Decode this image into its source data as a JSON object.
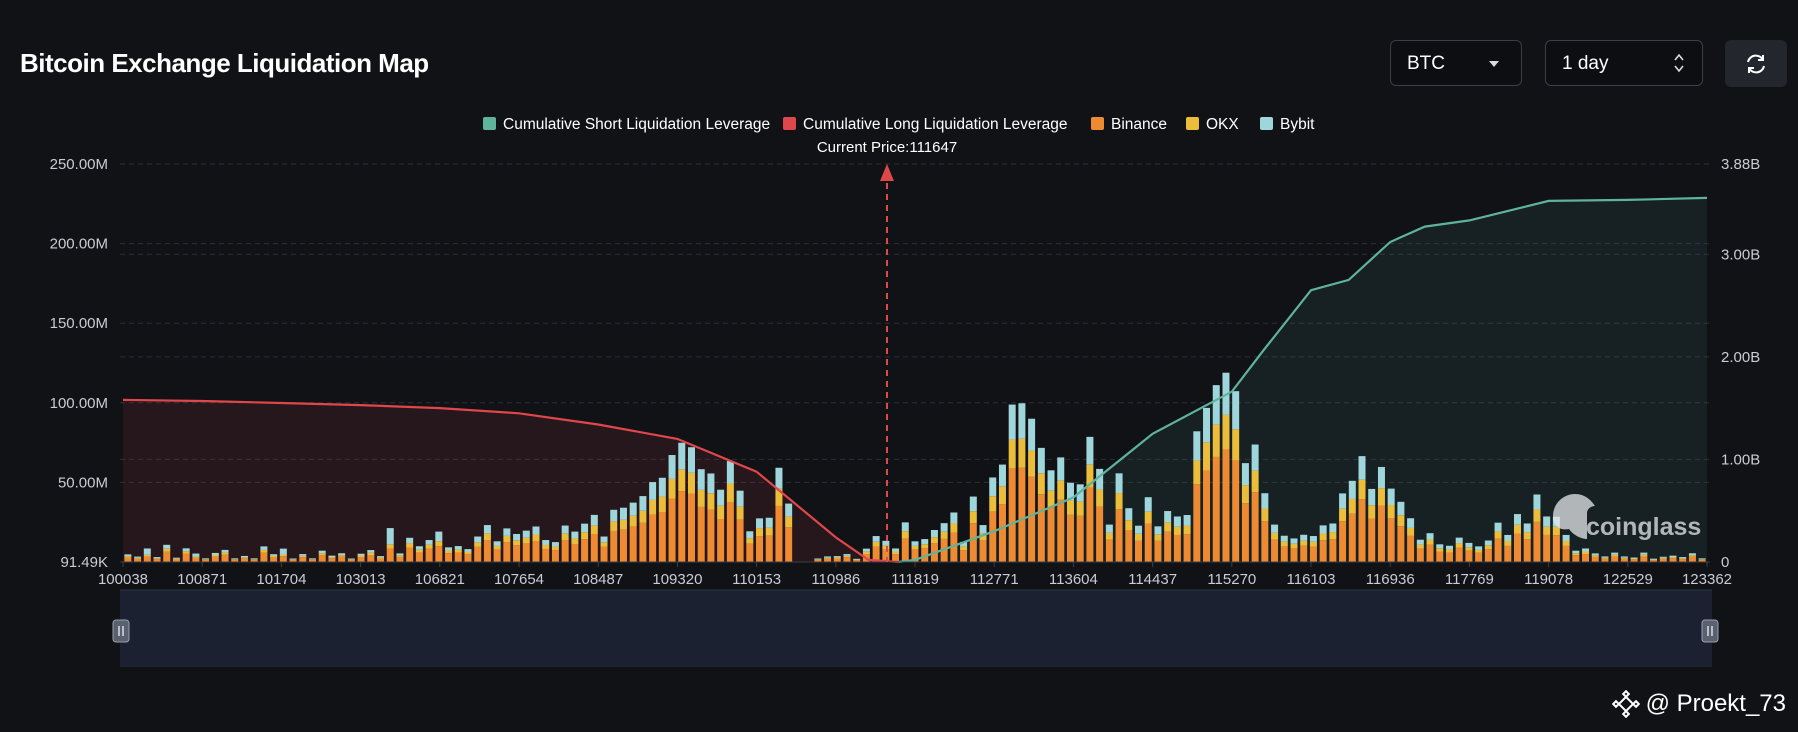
{
  "header": {
    "title": "Bitcoin Exchange Liquidation Map",
    "coin_select": "BTC",
    "range_select": "1 day"
  },
  "icons": {
    "refresh": "refresh-icon",
    "coin_dropdown": "caret-down-icon",
    "range_dropdown": "up-down-chevron-icon",
    "handle": "binance-square-icon",
    "watermark": "coinglass-logo"
  },
  "footer": {
    "handle": "@ Proekt_73"
  },
  "watermark_text": "coinglass",
  "colors": {
    "background": "#101216",
    "short_line": "#5fb39b",
    "long_line": "#e0474a",
    "binance": "#ee8a32",
    "okx": "#ecbd3a",
    "bybit": "#9fd6dc",
    "grid": "#2b2f36",
    "axis_text": "#c9ccd2"
  },
  "chart_data": {
    "type": "bar",
    "current_price_label": "Current Price:111647",
    "current_price": 111647,
    "legend": [
      {
        "name": "Cumulative Short Liquidation Leverage",
        "color": "#5fb39b"
      },
      {
        "name": "Cumulative Long Liquidation Leverage",
        "color": "#e0474a"
      },
      {
        "name": "Binance",
        "color": "#ee8a32"
      },
      {
        "name": "OKX",
        "color": "#ecbd3a"
      },
      {
        "name": "Bybit",
        "color": "#9fd6dc"
      }
    ],
    "x_tick_labels": [
      "100038",
      "100871",
      "101704",
      "103013",
      "106821",
      "107654",
      "108487",
      "109320",
      "110153",
      "110986",
      "111819",
      "112771",
      "113604",
      "114437",
      "115270",
      "116103",
      "116936",
      "117769",
      "119078",
      "122529",
      "123362"
    ],
    "y_left_ticks": [
      "91.49K",
      "50.00M",
      "100.00M",
      "150.00M",
      "200.00M",
      "250.00M"
    ],
    "y_left_range": [
      0,
      250
    ],
    "y_left_unit": "M",
    "y_right_ticks": [
      "0",
      "1.00B",
      "2.00B",
      "3.00B",
      "3.88B"
    ],
    "y_right_range": [
      0,
      3.88
    ],
    "y_right_unit": "B",
    "grid": true,
    "legend_position": "top-center",
    "series": [
      {
        "name": "Binance",
        "stack": "volume",
        "values": [
          2.8,
          2.0,
          3.4,
          1.8,
          6.4,
          1.6,
          5.1,
          2.6,
          1.4,
          3.4,
          4.5,
          1.4,
          2.3,
          1.4,
          5.8,
          2.9,
          3.6,
          1.3,
          3.0,
          1.4,
          4.2,
          2.4,
          3.3,
          1.3,
          3.1,
          4.4,
          2.2,
          8.5,
          3.2,
          9.1,
          5.9,
          8.3,
          10.0,
          5.5,
          6.0,
          4.8,
          9.5,
          13.8,
          7.7,
          12.5,
          10.5,
          11.7,
          13.2,
          8.2,
          7.4,
          13.6,
          11.3,
          14.3,
          17.6,
          9.5,
          19.5,
          20.3,
          22.2,
          24.6,
          29.8,
          31.4,
          39.9,
          44.5,
          42.8,
          34.6,
          33.0,
          27.0,
          37.7,
          26.6,
          11.5,
          16.3,
          16.5,
          35.2,
          21.8,
          0.0,
          0.0,
          1.3,
          2.1,
          2.2,
          3.0,
          1.2,
          5.0,
          9.7,
          7.9,
          5.0,
          14.8,
          7.7,
          8.6,
          11.9,
          14.5,
          18.5,
          7.5,
          24.4,
          13.8,
          31.6,
          36.4,
          58.8,
          59.3,
          53.5,
          42.6,
          34.3,
          39.1,
          29.6,
          29.0,
          46.7,
          34.8,
          14.0,
          33.1,
          20.1,
          13.5,
          24.2,
          13.3,
          19.0,
          17.0,
          17.5,
          48.8,
          57.5,
          66.0,
          70.7,
          63.8,
          36.9,
          43.9,
          25.7,
          14.0,
          9.8,
          8.8,
          10.2,
          9.7,
          13.7,
          14.4,
          25.6,
          30.3,
          39.5,
          27.3,
          35.5,
          27.4,
          22.5,
          16.4,
          8.3,
          10.8,
          6.6,
          6.0,
          9.1,
          7.1,
          5.8,
          8.0,
          14.7,
          10.1,
          17.9,
          14.4,
          25.2,
          17.0,
          16.9,
          10.1,
          4.2,
          5.0,
          3.2,
          2.1,
          3.5,
          2.1,
          1.7,
          3.5,
          1.2,
          2.0,
          2.4,
          1.8,
          3.3,
          1.4
        ]
      },
      {
        "name": "OKX",
        "stack": "volume",
        "values": [
          0.9,
          0.6,
          1.1,
          0.6,
          2.0,
          0.5,
          1.6,
          0.8,
          0.4,
          1.0,
          1.4,
          0.4,
          0.7,
          0.4,
          1.8,
          0.9,
          1.1,
          0.4,
          0.9,
          0.4,
          1.3,
          0.7,
          1.0,
          0.4,
          1.0,
          1.4,
          0.7,
          2.6,
          1.0,
          2.8,
          1.8,
          2.5,
          3.1,
          1.7,
          1.8,
          1.5,
          2.9,
          4.2,
          2.4,
          3.9,
          3.2,
          3.6,
          4.1,
          2.5,
          2.3,
          4.2,
          3.5,
          4.4,
          5.4,
          2.9,
          6.0,
          6.2,
          6.8,
          7.6,
          9.2,
          9.7,
          12.3,
          13.7,
          13.2,
          10.7,
          10.2,
          8.3,
          11.6,
          8.2,
          3.5,
          5.0,
          5.1,
          10.8,
          6.7,
          0.0,
          0.0,
          0.4,
          0.6,
          0.7,
          0.9,
          0.4,
          1.5,
          3.0,
          2.4,
          1.6,
          4.6,
          2.4,
          2.6,
          3.7,
          4.5,
          5.7,
          2.3,
          7.5,
          4.2,
          9.7,
          11.2,
          18.1,
          18.2,
          16.5,
          13.1,
          10.5,
          12.0,
          9.1,
          8.9,
          14.4,
          10.7,
          4.3,
          10.2,
          6.2,
          4.2,
          7.4,
          4.1,
          5.9,
          5.2,
          5.4,
          15.0,
          17.7,
          20.3,
          21.7,
          19.6,
          11.4,
          13.5,
          7.9,
          4.3,
          3.0,
          2.7,
          3.1,
          3.0,
          4.2,
          4.4,
          7.9,
          9.3,
          12.2,
          8.4,
          10.9,
          8.4,
          6.9,
          5.0,
          2.6,
          3.3,
          2.0,
          1.9,
          2.8,
          2.2,
          1.8,
          2.5,
          4.5,
          3.1,
          5.5,
          4.4,
          7.8,
          5.2,
          5.2,
          3.1,
          1.3,
          1.6,
          1.0,
          0.6,
          1.1,
          0.6,
          0.5,
          1.1,
          0.4,
          0.6,
          0.7,
          0.6,
          1.0,
          0.4
        ]
      },
      {
        "name": "Bybit",
        "stack": "volume",
        "values": [
          1.1,
          0.8,
          4.0,
          0.7,
          2.4,
          0.6,
          1.9,
          1.9,
          0.5,
          1.3,
          1.7,
          0.5,
          0.8,
          0.5,
          2.2,
          1.1,
          3.7,
          0.5,
          1.1,
          0.5,
          1.6,
          0.9,
          1.2,
          0.5,
          1.1,
          1.7,
          0.8,
          10.2,
          1.2,
          3.3,
          2.2,
          3.0,
          6.0,
          2.0,
          2.2,
          1.8,
          3.6,
          5.2,
          2.9,
          4.7,
          3.9,
          4.4,
          5.0,
          3.1,
          2.8,
          5.1,
          4.3,
          5.4,
          6.6,
          3.6,
          7.3,
          7.6,
          8.3,
          9.2,
          11.2,
          11.8,
          15.0,
          16.7,
          16.1,
          13.0,
          12.4,
          10.1,
          14.1,
          10.0,
          4.3,
          6.1,
          6.2,
          13.2,
          8.2,
          0.0,
          0.0,
          0.5,
          0.8,
          0.8,
          1.1,
          0.4,
          1.9,
          3.6,
          3.0,
          1.9,
          5.5,
          2.9,
          3.2,
          4.5,
          5.4,
          6.9,
          2.8,
          9.2,
          5.2,
          11.8,
          13.6,
          22.0,
          22.2,
          20.0,
          16.0,
          12.8,
          14.6,
          11.1,
          10.9,
          17.5,
          13.0,
          5.2,
          12.4,
          7.5,
          5.1,
          9.1,
          5.0,
          7.1,
          6.4,
          6.6,
          18.3,
          21.6,
          24.8,
          26.5,
          23.9,
          13.8,
          16.4,
          9.6,
          5.2,
          3.7,
          3.3,
          3.8,
          3.6,
          5.1,
          5.4,
          9.6,
          11.4,
          14.8,
          10.2,
          13.3,
          10.3,
          8.4,
          6.1,
          3.1,
          4.0,
          2.5,
          2.3,
          3.4,
          2.7,
          2.2,
          3.0,
          5.5,
          3.8,
          6.7,
          5.4,
          9.4,
          6.4,
          6.3,
          3.8,
          1.6,
          1.9,
          1.2,
          0.8,
          1.3,
          0.8,
          0.6,
          1.3,
          0.5,
          0.7,
          0.9,
          0.7,
          1.2,
          0.5
        ]
      },
      {
        "name": "Cumulative Long Liquidation Leverage",
        "axis": "right",
        "x": [
          100038,
          100871,
          101704,
          103013,
          106821,
          107654,
          108487,
          109320,
          110153,
          110986,
          111330,
          111647
        ],
        "values": [
          1.58,
          1.57,
          1.55,
          1.53,
          1.5,
          1.45,
          1.34,
          1.2,
          0.88,
          0.24,
          0.02,
          0.0
        ]
      },
      {
        "name": "Cumulative Short Liquidation Leverage",
        "axis": "right",
        "x": [
          111647,
          111819,
          112771,
          113604,
          114437,
          115270,
          115600,
          116103,
          116500,
          116936,
          117300,
          117769,
          119078,
          122529,
          123362
        ],
        "values": [
          0.0,
          0.02,
          0.3,
          0.63,
          1.25,
          1.66,
          2.06,
          2.65,
          2.75,
          3.12,
          3.27,
          3.33,
          3.52,
          3.53,
          3.55
        ]
      }
    ]
  }
}
